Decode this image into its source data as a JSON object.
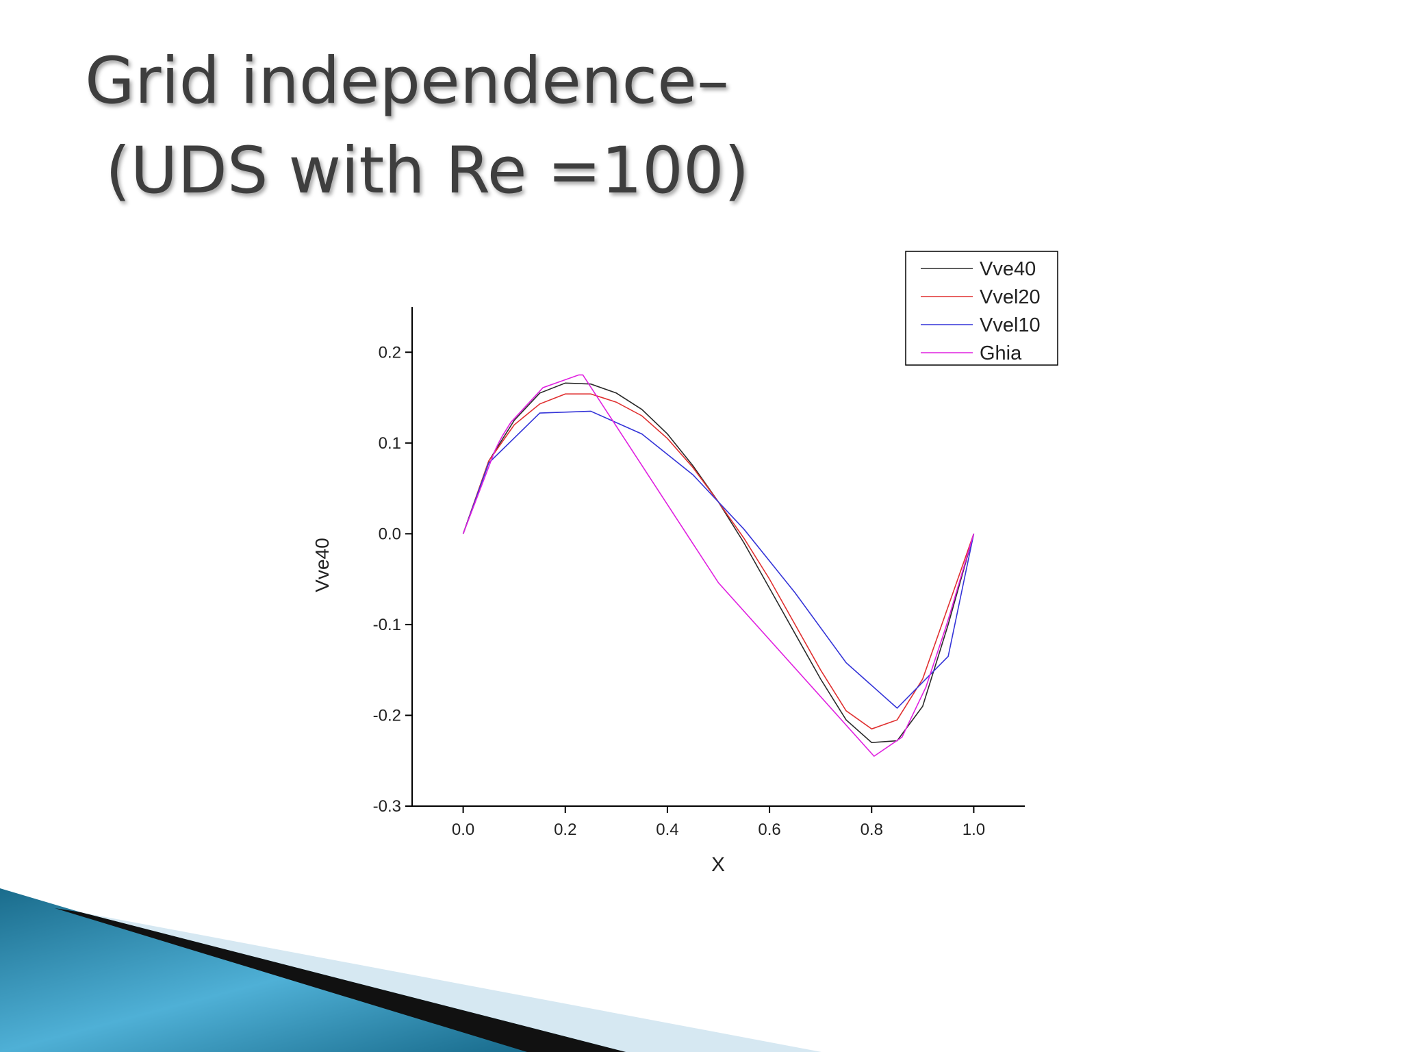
{
  "title_lines": [
    "Grid independence–",
    "(UDS with Re =100)"
  ],
  "chart_data": {
    "type": "line",
    "x_label": "X",
    "y_label": "Vve40",
    "xlim": [
      -0.1,
      1.1
    ],
    "ylim": [
      -0.3,
      0.25
    ],
    "xticks": [
      {
        "value": 0,
        "label": "0.0"
      },
      0.2,
      0.4,
      0.6,
      0.8,
      {
        "value": 1,
        "label": "1.0"
      }
    ],
    "yticks": [
      -0.3,
      -0.2,
      -0.1,
      {
        "value": 0,
        "label": "0.0"
      },
      0.1,
      0.2
    ],
    "legend": "top-right",
    "series": [
      {
        "name": "Vve40",
        "color": "#2a2a2a",
        "x": [
          0,
          0.05,
          0.1,
          0.15,
          0.2,
          0.25,
          0.3,
          0.35,
          0.4,
          0.45,
          0.5,
          0.55,
          0.6,
          0.65,
          0.7,
          0.75,
          0.8,
          0.85,
          0.9,
          0.95,
          1.0
        ],
        "values": [
          0,
          0.08,
          0.125,
          0.155,
          0.166,
          0.165,
          0.155,
          0.137,
          0.11,
          0.075,
          0.035,
          -0.01,
          -0.06,
          -0.11,
          -0.16,
          -0.205,
          -0.23,
          -0.228,
          -0.19,
          -0.1,
          0
        ]
      },
      {
        "name": "Vvel20",
        "color": "#e03030",
        "x": [
          0,
          0.05,
          0.1,
          0.15,
          0.2,
          0.25,
          0.3,
          0.35,
          0.4,
          0.45,
          0.5,
          0.55,
          0.6,
          0.65,
          0.7,
          0.75,
          0.8,
          0.85,
          0.9,
          0.95,
          1.0
        ],
        "values": [
          0,
          0.08,
          0.12,
          0.143,
          0.154,
          0.154,
          0.145,
          0.13,
          0.105,
          0.073,
          0.035,
          -0.005,
          -0.05,
          -0.1,
          -0.15,
          -0.195,
          -0.215,
          -0.205,
          -0.16,
          -0.08,
          0
        ]
      },
      {
        "name": "Vvel10",
        "color": "#3434d8",
        "x": [
          0,
          0.05,
          0.15,
          0.25,
          0.35,
          0.45,
          0.55,
          0.65,
          0.75,
          0.85,
          0.95,
          1.0
        ],
        "values": [
          0,
          0.078,
          0.133,
          0.135,
          0.11,
          0.065,
          0.005,
          -0.065,
          -0.142,
          -0.192,
          -0.135,
          0
        ]
      },
      {
        "name": "Ghia",
        "color": "#e020e0",
        "x": [
          0,
          0.0625,
          0.0703,
          0.0781,
          0.0938,
          0.1563,
          0.2266,
          0.2344,
          0.5,
          0.8047,
          0.8594,
          0.9063,
          0.9453,
          0.9531,
          0.9609,
          0.9688,
          1.0
        ],
        "values": [
          0,
          0.092,
          0.101,
          0.109,
          0.123,
          0.161,
          0.175,
          0.175,
          -0.054,
          -0.245,
          -0.224,
          -0.169,
          -0.103,
          -0.089,
          -0.074,
          -0.059,
          0
        ]
      }
    ]
  }
}
